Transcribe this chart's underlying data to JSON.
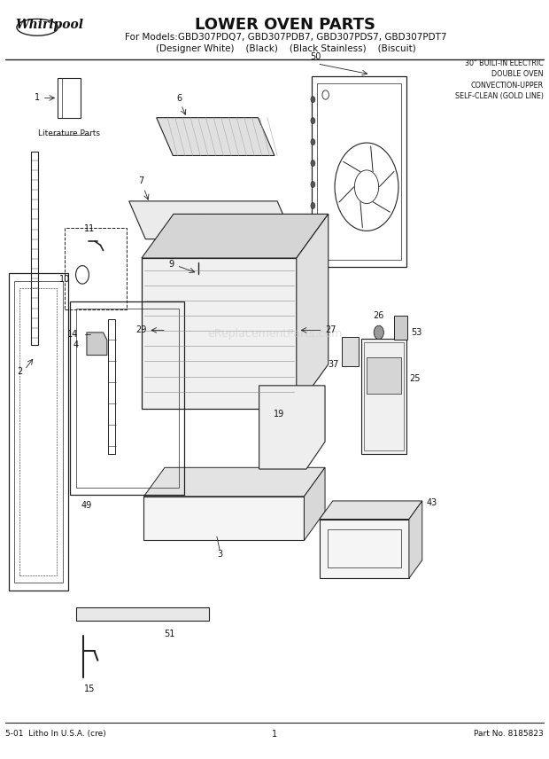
{
  "title": "LOWER OVEN PARTS",
  "subtitle_line1": "For Models:GBD307PDQ7, GBD307PDB7, GBD307PDS7, GBD307PDT7",
  "subtitle_line2": "(Designer White)    (Black)    (Black Stainless)    (Biscuit)",
  "brand": "Whirlpool",
  "top_right_text": "30\" BUILT-IN ELECTRIC\nDOUBLE OVEN\nCONVECTION-UPPER\nSELF-CLEAN (GOLD LINE)",
  "footer_left": "5-01  Litho In U.S.A. (cre)",
  "footer_center": "1",
  "footer_right": "Part No. 8185823",
  "literature_label": "Literature Parts",
  "bg_color": "#ffffff",
  "line_color": "#222222",
  "text_color": "#111111"
}
